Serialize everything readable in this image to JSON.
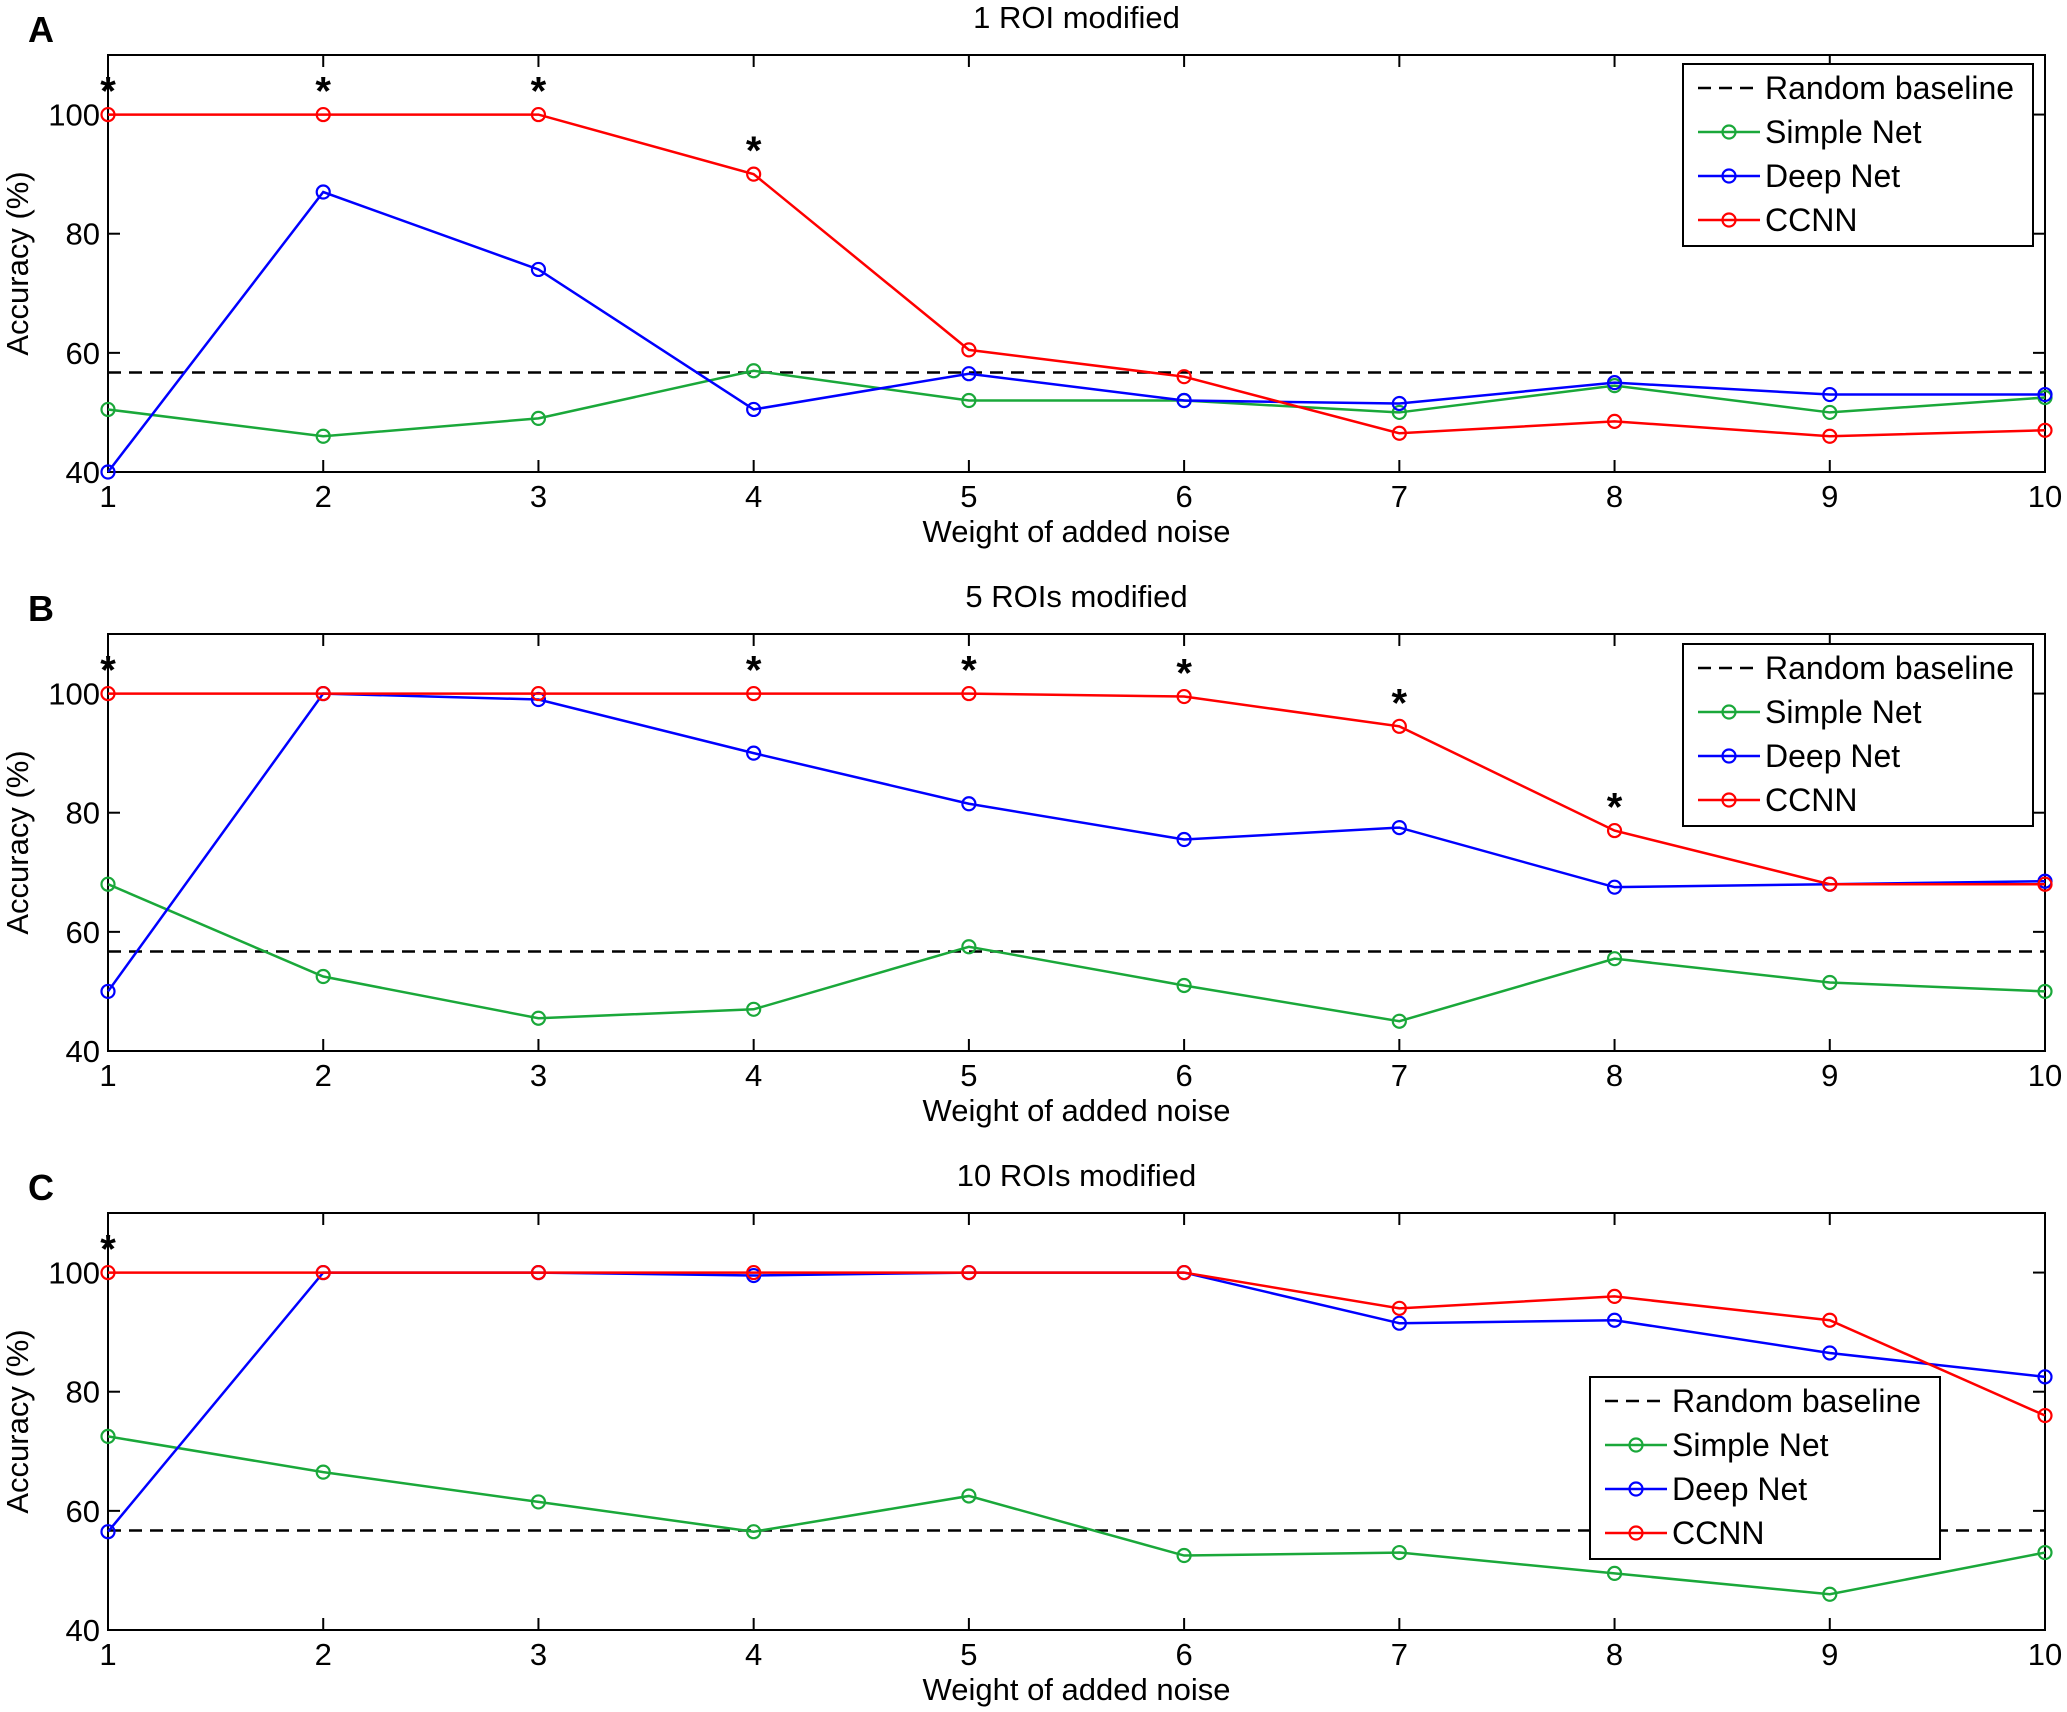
{
  "chart_data": [
    {
      "panel": "A",
      "type": "line",
      "title": "1 ROI modified",
      "xlabel": "Weight of added noise",
      "ylabel": "Accuracy (%)",
      "xlim": [
        1,
        10
      ],
      "ylim": [
        40,
        110
      ],
      "xticks": [
        1,
        2,
        3,
        4,
        5,
        6,
        7,
        8,
        9,
        10
      ],
      "yticks": [
        40,
        60,
        80,
        100
      ],
      "x": [
        1,
        2,
        3,
        4,
        5,
        6,
        7,
        8,
        9,
        10
      ],
      "legend_position": "top-right",
      "baseline": {
        "name": "Random baseline",
        "value": 56.7
      },
      "series": [
        {
          "name": "Simple Net",
          "color": "#1aa83a",
          "values": [
            50.5,
            46,
            49,
            57,
            52,
            52,
            50,
            54.5,
            50,
            52.5
          ]
        },
        {
          "name": "Deep Net",
          "color": "#0000ff",
          "values": [
            40,
            87,
            74,
            50.5,
            56.5,
            52,
            51.5,
            55,
            53,
            53
          ]
        },
        {
          "name": "CCNN",
          "color": "#ff0000",
          "values": [
            100,
            100,
            100,
            90,
            60.5,
            56,
            46.5,
            48.5,
            46,
            47
          ]
        }
      ],
      "significance": {
        "symbol": "*",
        "x": [
          1,
          2,
          3,
          4
        ]
      }
    },
    {
      "panel": "B",
      "type": "line",
      "title": "5 ROIs modified",
      "xlabel": "Weight of added noise",
      "ylabel": "Accuracy (%)",
      "xlim": [
        1,
        10
      ],
      "ylim": [
        40,
        110
      ],
      "xticks": [
        1,
        2,
        3,
        4,
        5,
        6,
        7,
        8,
        9,
        10
      ],
      "yticks": [
        40,
        60,
        80,
        100
      ],
      "x": [
        1,
        2,
        3,
        4,
        5,
        6,
        7,
        8,
        9,
        10
      ],
      "legend_position": "top-right",
      "baseline": {
        "name": "Random baseline",
        "value": 56.7
      },
      "series": [
        {
          "name": "Simple Net",
          "color": "#1aa83a",
          "values": [
            68,
            52.5,
            45.5,
            47,
            57.5,
            51,
            45,
            55.5,
            51.5,
            50
          ]
        },
        {
          "name": "Deep Net",
          "color": "#0000ff",
          "values": [
            50,
            100,
            99,
            90,
            81.5,
            75.5,
            77.5,
            67.5,
            68,
            68.5
          ]
        },
        {
          "name": "CCNN",
          "color": "#ff0000",
          "values": [
            100,
            100,
            100,
            100,
            100,
            99.5,
            94.5,
            77,
            68,
            68
          ]
        }
      ],
      "significance": {
        "symbol": "*",
        "x": [
          1,
          4,
          5,
          6,
          7,
          8
        ]
      }
    },
    {
      "panel": "C",
      "type": "line",
      "title": "10 ROIs modified",
      "xlabel": "Weight of added noise",
      "ylabel": "Accuracy (%)",
      "xlim": [
        1,
        10
      ],
      "ylim": [
        40,
        110
      ],
      "xticks": [
        1,
        2,
        3,
        4,
        5,
        6,
        7,
        8,
        9,
        10
      ],
      "yticks": [
        40,
        60,
        80,
        100
      ],
      "x": [
        1,
        2,
        3,
        4,
        5,
        6,
        7,
        8,
        9,
        10
      ],
      "legend_position": "right",
      "baseline": {
        "name": "Random baseline",
        "value": 56.7
      },
      "series": [
        {
          "name": "Simple Net",
          "color": "#1aa83a",
          "values": [
            72.5,
            66.5,
            61.5,
            56.5,
            62.5,
            52.5,
            53,
            49.5,
            46,
            53
          ]
        },
        {
          "name": "Deep Net",
          "color": "#0000ff",
          "values": [
            56.5,
            100,
            100,
            99.5,
            100,
            100,
            91.5,
            92,
            86.5,
            82.5
          ]
        },
        {
          "name": "CCNN",
          "color": "#ff0000",
          "values": [
            100,
            100,
            100,
            100,
            100,
            100,
            94,
            96,
            92,
            76
          ]
        }
      ],
      "significance": {
        "symbol": "*",
        "x": [
          1
        ]
      }
    }
  ]
}
